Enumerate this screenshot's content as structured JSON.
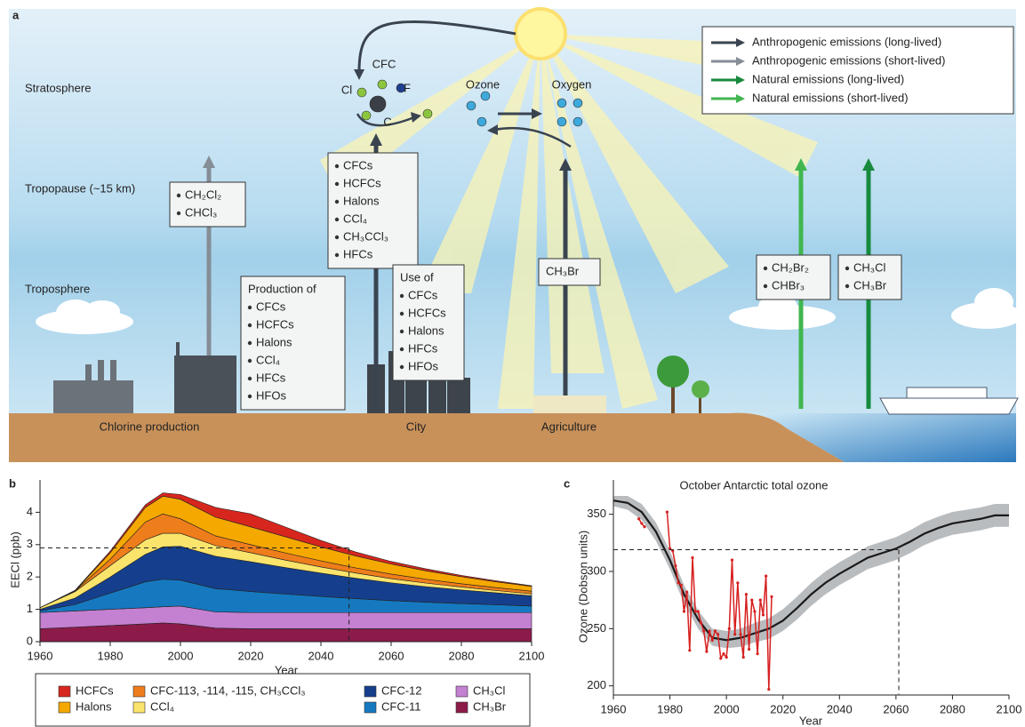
{
  "panel_a": {
    "panel": "a",
    "layers": [
      "Stratosphere",
      "Tropopause (~15 km)",
      "Troposphere"
    ],
    "molecule_labels": [
      "CFC",
      "Cl",
      "F",
      "C",
      "Ozone",
      "Oxygen"
    ],
    "legend": [
      {
        "name": "Anthropogenic emissions (long-lived)",
        "color": "#3a4450"
      },
      {
        "name": "Anthropogenic emissions (short-lived)",
        "color": "#858d96"
      },
      {
        "name": "Natural emissions (long-lived)",
        "color": "#178a3e"
      },
      {
        "name": "Natural emissions (short-lived)",
        "color": "#41b650"
      }
    ],
    "boxes": [
      {
        "items": [
          "CH₂Cl₂",
          "CHCl₃"
        ]
      },
      {
        "items": [
          "CFCs",
          "HCFCs",
          "Halons",
          "CCl₄",
          "CH₃CCl₃",
          "HFCs"
        ]
      },
      {
        "title": "Production of",
        "items": [
          "CFCs",
          "HCFCs",
          "Halons",
          "CCl₄",
          "HFCs",
          "HFOs"
        ]
      },
      {
        "title": "Use of",
        "items": [
          "CFCs",
          "HCFCs",
          "Halons",
          "HFCs",
          "HFOs"
        ]
      },
      {
        "title": "CH₃Br"
      },
      {
        "items": [
          "CH₂Br₂",
          "CHBr₃"
        ]
      },
      {
        "items": [
          "CH₃Cl",
          "CH₃Br"
        ]
      }
    ],
    "places": [
      "Chlorine production",
      "City",
      "Agriculture"
    ]
  },
  "chart_data": [
    {
      "type": "stacked-area",
      "panel": "b",
      "xlabel": "Year",
      "ylabel": "EECl (ppb)",
      "x": [
        1960,
        1970,
        1980,
        1990,
        1995,
        2000,
        2010,
        2020,
        2030,
        2040,
        2050,
        2060,
        2070,
        2080,
        2090,
        2100
      ],
      "xlim": [
        1960,
        2100
      ],
      "xticks": [
        1960,
        1980,
        2000,
        2020,
        2040,
        2060,
        2080,
        2100
      ],
      "ylim": [
        0,
        5
      ],
      "yticks": [
        0,
        1,
        2,
        3,
        4
      ],
      "hline": 2.9,
      "vline": 2048,
      "series": [
        {
          "name": "HCFCs",
          "color": "#d7261e",
          "values": [
            0,
            0.02,
            0.05,
            0.08,
            0.1,
            0.15,
            0.3,
            0.4,
            0.3,
            0.2,
            0.12,
            0.08,
            0.06,
            0.04,
            0.03,
            0.02
          ]
        },
        {
          "name": "Halons",
          "color": "#f5a800",
          "values": [
            0,
            0,
            0.2,
            0.45,
            0.55,
            0.6,
            0.58,
            0.55,
            0.5,
            0.43,
            0.37,
            0.31,
            0.26,
            0.22,
            0.18,
            0.15
          ]
        },
        {
          "name": "CFC-113, -114, -115, CH₃CCl₃",
          "color": "#ee7d1b",
          "values": [
            0,
            0.02,
            0.2,
            0.55,
            0.6,
            0.45,
            0.3,
            0.25,
            0.22,
            0.19,
            0.16,
            0.14,
            0.12,
            0.1,
            0.09,
            0.08
          ]
        },
        {
          "name": "CCl₄",
          "color": "#fbe46c",
          "values": [
            0.05,
            0.2,
            0.35,
            0.45,
            0.42,
            0.4,
            0.33,
            0.28,
            0.23,
            0.19,
            0.16,
            0.13,
            0.11,
            0.09,
            0.07,
            0.06
          ]
        },
        {
          "name": "CFC-12",
          "color": "#153f8c",
          "values": [
            0.05,
            0.2,
            0.5,
            0.85,
            1.0,
            1.05,
            1.0,
            0.92,
            0.82,
            0.72,
            0.63,
            0.55,
            0.48,
            0.42,
            0.37,
            0.32
          ]
        },
        {
          "name": "CFC-11",
          "color": "#1679c0",
          "values": [
            0.05,
            0.2,
            0.5,
            0.8,
            0.85,
            0.8,
            0.72,
            0.65,
            0.57,
            0.5,
            0.43,
            0.37,
            0.32,
            0.28,
            0.24,
            0.2
          ]
        },
        {
          "name": "CH₃Cl",
          "color": "#c480d1",
          "values": [
            0.5,
            0.5,
            0.5,
            0.5,
            0.5,
            0.55,
            0.5,
            0.5,
            0.5,
            0.5,
            0.5,
            0.5,
            0.5,
            0.5,
            0.5,
            0.5
          ]
        },
        {
          "name": "CH₃Br",
          "color": "#8c1b4a",
          "values": [
            0.4,
            0.45,
            0.5,
            0.55,
            0.58,
            0.55,
            0.42,
            0.4,
            0.4,
            0.4,
            0.4,
            0.4,
            0.4,
            0.4,
            0.4,
            0.4
          ]
        }
      ]
    },
    {
      "type": "line",
      "panel": "c",
      "title": "October Antarctic total ozone",
      "xlabel": "Year",
      "ylabel": "Ozone (Dobson units)",
      "xlim": [
        1960,
        2100
      ],
      "xticks": [
        1960,
        1980,
        2000,
        2020,
        2040,
        2060,
        2080,
        2100
      ],
      "ylim": [
        192,
        380
      ],
      "yticks": [
        200,
        250,
        300,
        350
      ],
      "hline": 319,
      "vline": 2061,
      "series": [
        {
          "color": "#1a1a1a",
          "band_color": "#b9bcbf",
          "x": [
            1960,
            1965,
            1970,
            1975,
            1980,
            1985,
            1990,
            1995,
            2000,
            2005,
            2010,
            2015,
            2020,
            2025,
            2030,
            2035,
            2040,
            2045,
            2050,
            2055,
            2060,
            2065,
            2070,
            2075,
            2080,
            2085,
            2090,
            2095,
            2100
          ],
          "values": [
            362,
            360,
            352,
            335,
            310,
            280,
            258,
            242,
            240,
            242,
            246,
            250,
            257,
            268,
            280,
            290,
            298,
            305,
            312,
            316,
            320,
            326,
            333,
            338,
            342,
            344,
            346,
            349,
            349
          ],
          "band_lower": [
            357,
            354,
            345,
            327,
            302,
            272,
            250,
            235,
            233,
            234,
            238,
            241,
            248,
            258,
            270,
            280,
            288,
            295,
            302,
            306,
            310,
            316,
            323,
            328,
            332,
            334,
            336,
            339,
            339
          ],
          "band_upper": [
            366,
            366,
            359,
            343,
            318,
            288,
            266,
            250,
            248,
            250,
            255,
            259,
            267,
            278,
            290,
            300,
            308,
            315,
            322,
            326,
            330,
            336,
            343,
            348,
            352,
            354,
            356,
            359,
            359
          ]
        },
        {
          "color": "#d6201f",
          "x": [
            1969,
            1970,
            1971,
            1975,
            1979,
            1980,
            1981,
            1982,
            1983,
            1984,
            1985,
            1986,
            1987,
            1988,
            1989,
            1990,
            1991,
            1992,
            1993,
            1994,
            1995,
            1996,
            1997,
            1998,
            1999,
            2000,
            2001,
            2002,
            2003,
            2004,
            2005,
            2006,
            2007,
            2008,
            2009,
            2010,
            2011,
            2012,
            2013,
            2014,
            2015,
            2016
          ],
          "values": [
            346,
            342,
            339,
            null,
            352,
            320,
            318,
            305,
            290,
            288,
            265,
            282,
            231,
            312,
            265,
            265,
            255,
            248,
            230,
            248,
            240,
            248,
            245,
            224,
            228,
            225,
            250,
            310,
            245,
            290,
            245,
            225,
            280,
            232,
            275,
            265,
            228,
            275,
            262,
            296,
            197,
            278
          ]
        }
      ]
    }
  ]
}
